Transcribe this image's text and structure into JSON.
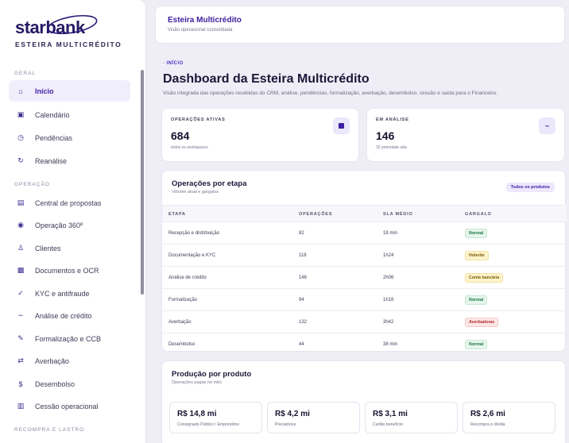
{
  "brand": {
    "logo": "starbank",
    "subtitle": "ESTEIRA MULTICRÉDITO"
  },
  "nav": {
    "section_geral": "GERAL",
    "section_operacao": "OPERAÇÃO",
    "section_recompra": "RECOMPRA E LASTRO",
    "items": [
      {
        "label": "Início",
        "icon": "home-icon",
        "glyph": "⌂",
        "active": true
      },
      {
        "label": "Calendário",
        "icon": "calendar-icon",
        "glyph": "▣"
      },
      {
        "label": "Pendências",
        "icon": "clock-icon",
        "glyph": "◷"
      },
      {
        "label": "Reanálise",
        "icon": "refresh-icon",
        "glyph": "↻"
      },
      {
        "label": "Central de propostas",
        "icon": "list-icon",
        "glyph": "▤"
      },
      {
        "label": "Operação 360º",
        "icon": "target-icon",
        "glyph": "◉"
      },
      {
        "label": "Clientes",
        "icon": "user-icon",
        "glyph": "♙"
      },
      {
        "label": "Documentos e OCR",
        "icon": "scan-icon",
        "glyph": "▩"
      },
      {
        "label": "KYC e antifraude",
        "icon": "check-icon",
        "glyph": "✓"
      },
      {
        "label": "Análise de crédito",
        "icon": "trend-icon",
        "glyph": "∼"
      },
      {
        "label": "Formalização e CCB",
        "icon": "pen-icon",
        "glyph": "✎"
      },
      {
        "label": "Averbação",
        "icon": "swap-icon",
        "glyph": "⇄"
      },
      {
        "label": "Desembolso",
        "icon": "dollar-icon",
        "glyph": "$"
      },
      {
        "label": "Cessão operacional",
        "icon": "book-icon",
        "glyph": "▥"
      }
    ]
  },
  "header": {
    "title": "Esteira Multicrédito",
    "subtitle": "Visão operacional consolidada"
  },
  "page": {
    "breadcrumb": "INÍCIO",
    "title": "Dashboard da Esteira Multicrédito",
    "description": "Visão integrada das operações recebidas do CRM, análise, pendências, formalização, averbação, desembolso, cessão e saída para o Financeiro."
  },
  "stats": [
    {
      "label": "OPERAÇÕES ATIVAS",
      "value": "684",
      "hint": "todos os workspaces",
      "icon": "square-icon"
    },
    {
      "label": "EM ANÁLISE",
      "value": "146",
      "hint": "32 prioridade alta",
      "icon": "trend-icon"
    }
  ],
  "stages": {
    "title": "Operações por etapa",
    "subtitle": "Volume atual e gargalos",
    "filter": "Todos os produtos",
    "columns": [
      "ETAPA",
      "OPERAÇÕES",
      "SLA MÉDIO",
      "GARGALO"
    ],
    "rows": [
      {
        "etapa": "Recepção e distribuição",
        "operacoes": "82",
        "sla": "18 min",
        "gargalo": "Normal",
        "status": "ok"
      },
      {
        "etapa": "Documentação e KYC",
        "operacoes": "118",
        "sla": "1h24",
        "gargalo": "Holerite",
        "status": "warn"
      },
      {
        "etapa": "Análise de crédito",
        "operacoes": "146",
        "sla": "2h06",
        "gargalo": "Conta bancária",
        "status": "warn"
      },
      {
        "etapa": "Formalização",
        "operacoes": "94",
        "sla": "1h18",
        "gargalo": "Normal",
        "status": "ok"
      },
      {
        "etapa": "Averbação",
        "operacoes": "132",
        "sla": "3h42",
        "gargalo": "Averbadoras",
        "status": "bad"
      },
      {
        "etapa": "Desembolso",
        "operacoes": "44",
        "sla": "38 min",
        "gargalo": "Normal",
        "status": "ok"
      }
    ]
  },
  "production": {
    "title": "Produção por produto",
    "subtitle": "Operações pagas no mês",
    "items": [
      {
        "value": "R$ 14,8 mi",
        "label": "Consignado Público / Empréstimo"
      },
      {
        "value": "R$ 4,2 mi",
        "label": "Precatórios"
      },
      {
        "value": "R$ 3,1 mi",
        "label": "Cartão benefício"
      },
      {
        "value": "R$ 2,6 mi",
        "label": "Recompra e dívida"
      }
    ]
  },
  "colors": {
    "accent": "#3d1fa3",
    "ok": "#1c7a45",
    "warn": "#7a5b05",
    "bad": "#b22b2b"
  }
}
